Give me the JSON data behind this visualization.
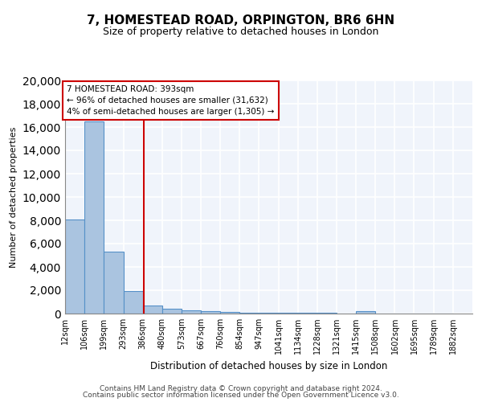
{
  "title1": "7, HOMESTEAD ROAD, ORPINGTON, BR6 6HN",
  "title2": "Size of property relative to detached houses in London",
  "xlabel": "Distribution of detached houses by size in London",
  "ylabel": "Number of detached properties",
  "bin_labels": [
    "12sqm",
    "106sqm",
    "199sqm",
    "293sqm",
    "386sqm",
    "480sqm",
    "573sqm",
    "667sqm",
    "760sqm",
    "854sqm",
    "947sqm",
    "1041sqm",
    "1134sqm",
    "1228sqm",
    "1321sqm",
    "1415sqm",
    "1508sqm",
    "1602sqm",
    "1695sqm",
    "1789sqm",
    "1882sqm"
  ],
  "bin_edges": [
    12,
    106,
    199,
    293,
    386,
    480,
    573,
    667,
    760,
    854,
    947,
    1041,
    1134,
    1228,
    1321,
    1415,
    1508,
    1602,
    1695,
    1789,
    1882
  ],
  "bar_heights": [
    8100,
    16500,
    5300,
    1900,
    700,
    400,
    300,
    200,
    130,
    100,
    80,
    60,
    50,
    40,
    30,
    230,
    20,
    15,
    10,
    8
  ],
  "bar_color": "#aac4e0",
  "bar_edge_color": "#5590c8",
  "property_size": 393,
  "red_line_color": "#cc0000",
  "annotation_line1": "7 HOMESTEAD ROAD: 393sqm",
  "annotation_line2": "← 96% of detached houses are smaller (31,632)",
  "annotation_line3": "4% of semi-detached houses are larger (1,305) →",
  "annotation_box_color": "#cc0000",
  "ylim": [
    0,
    20000
  ],
  "yticks": [
    0,
    2000,
    4000,
    6000,
    8000,
    10000,
    12000,
    14000,
    16000,
    18000,
    20000
  ],
  "footer1": "Contains HM Land Registry data © Crown copyright and database right 2024.",
  "footer2": "Contains public sector information licensed under the Open Government Licence v3.0.",
  "background_color": "#f0f4fb",
  "grid_color": "#ffffff"
}
